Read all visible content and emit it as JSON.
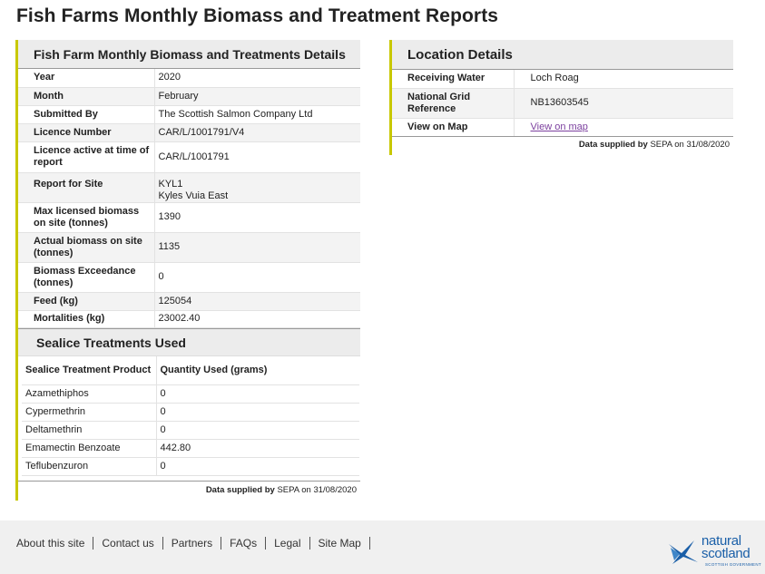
{
  "page": {
    "title": "Fish Farms Monthly Biomass and Treatment Reports"
  },
  "details_panel": {
    "title": "Fish Farm Monthly Biomass and Treatments Details",
    "rows": [
      {
        "label": "Year",
        "value": "2020"
      },
      {
        "label": "Month",
        "value": "February"
      },
      {
        "label": "Submitted By",
        "value": "The Scottish Salmon Company Ltd"
      },
      {
        "label": "Licence Number",
        "value": "CAR/L/1001791/V4"
      },
      {
        "label": "Licence active at time of report",
        "value": "CAR/L/1001791"
      },
      {
        "label": "Report for Site",
        "value": "KYL1",
        "value2": "Kyles Vuia East"
      },
      {
        "label": "Max licensed biomass on site (tonnes)",
        "value": "1390"
      },
      {
        "label": "Actual biomass on site (tonnes)",
        "value": "1135"
      },
      {
        "label": "Biomass Exceedance (tonnes)",
        "value": "0"
      },
      {
        "label": "Feed (kg)",
        "value": "125054"
      },
      {
        "label": "Mortalities (kg)",
        "value": "23002.40"
      }
    ],
    "treatments_title": "Sealice Treatments Used",
    "treatments_header": {
      "product": "Sealice Treatment Product",
      "quantity": "Quantity Used (grams)"
    },
    "treatments": [
      {
        "product": "Azamethiphos",
        "quantity": "0"
      },
      {
        "product": "Cypermethrin",
        "quantity": "0"
      },
      {
        "product": "Deltamethrin",
        "quantity": "0"
      },
      {
        "product": "Emamectin Benzoate",
        "quantity": "442.80"
      },
      {
        "product": "Teflubenzuron",
        "quantity": "0"
      }
    ],
    "supplied": {
      "prefix": "Data supplied by",
      "org": "SEPA",
      "on": "on 31/08/2020"
    }
  },
  "location_panel": {
    "title": "Location Details",
    "rows": [
      {
        "label": "Receiving Water",
        "value": "Loch Roag"
      },
      {
        "label": "National Grid Reference",
        "value": "NB13603545"
      },
      {
        "label": "View on Map",
        "value": "View on map"
      }
    ],
    "supplied": {
      "prefix": "Data supplied by",
      "org": "SEPA",
      "on": "on 31/08/2020"
    }
  },
  "footer": {
    "links": [
      "About this site",
      "Contact us",
      "Partners",
      "FAQs",
      "Legal",
      "Site Map"
    ],
    "logo": {
      "line1": "natural",
      "line2": "scotland",
      "sub": "SCOTTISH GOVERNMENT"
    }
  },
  "colors": {
    "accent_border": "#c8c800",
    "link_visited": "#7b3f9e",
    "logo_blue": "#1a5fa8"
  }
}
